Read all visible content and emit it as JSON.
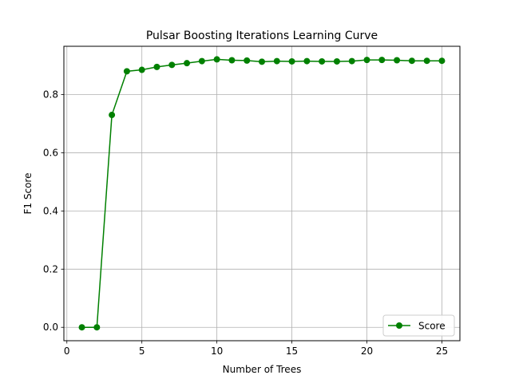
{
  "chart_data": {
    "type": "line",
    "title": "Pulsar Boosting Iterations Learning Curve",
    "xlabel": "Number of Trees",
    "ylabel": "F1 Score",
    "xlim": [
      -0.2,
      26.2
    ],
    "ylim": [
      -0.046,
      0.966
    ],
    "xticks": [
      0,
      5,
      10,
      15,
      20,
      25
    ],
    "yticks": [
      0.0,
      0.2,
      0.4,
      0.6,
      0.8
    ],
    "ytick_labels": [
      "0.0",
      "0.2",
      "0.4",
      "0.6",
      "0.8"
    ],
    "grid": true,
    "legend_position": "bottom-right",
    "series": [
      {
        "name": "Score",
        "color": "#008000",
        "marker": "circle",
        "x": [
          1,
          2,
          3,
          4,
          5,
          6,
          7,
          8,
          9,
          10,
          11,
          12,
          13,
          14,
          15,
          16,
          17,
          18,
          19,
          20,
          21,
          22,
          23,
          24,
          25
        ],
        "y": [
          0.0,
          0.0,
          0.73,
          0.88,
          0.885,
          0.895,
          0.902,
          0.908,
          0.915,
          0.921,
          0.918,
          0.917,
          0.913,
          0.915,
          0.914,
          0.915,
          0.914,
          0.914,
          0.915,
          0.919,
          0.919,
          0.918,
          0.916,
          0.916,
          0.916
        ]
      }
    ]
  }
}
